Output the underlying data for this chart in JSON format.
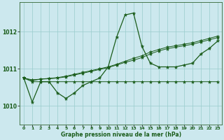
{
  "title": "Graphe pression niveau de la mer (hPa)",
  "bg_color": "#cce8ee",
  "grid_color": "#99cccc",
  "line_color": "#1a5c1a",
  "x_ticks": [
    0,
    1,
    2,
    3,
    4,
    5,
    6,
    7,
    8,
    9,
    10,
    11,
    12,
    13,
    14,
    15,
    16,
    17,
    18,
    19,
    20,
    21,
    22,
    23
  ],
  "y_ticks": [
    1010,
    1011,
    1012
  ],
  "ylim": [
    1009.5,
    1012.8
  ],
  "xlim": [
    -0.5,
    23.5
  ],
  "series1": [
    1010.75,
    1010.1,
    1010.65,
    1010.65,
    1010.35,
    1010.2,
    1010.35,
    1010.55,
    1010.65,
    1010.75,
    1011.05,
    1011.85,
    1012.45,
    1012.5,
    1011.6,
    1011.15,
    1011.05,
    1011.05,
    1011.05,
    1011.1,
    1011.15,
    1011.4,
    1011.55,
    1011.75
  ],
  "series2": [
    1010.75,
    1010.65,
    1010.65,
    1010.65,
    1010.65,
    1010.65,
    1010.65,
    1010.65,
    1010.65,
    1010.65,
    1010.65,
    1010.65,
    1010.65,
    1010.65,
    1010.65,
    1010.65,
    1010.65,
    1010.65,
    1010.65,
    1010.65,
    1010.65,
    1010.65,
    1010.65,
    1010.65
  ],
  "series3": [
    1010.75,
    1010.68,
    1010.72,
    1010.74,
    1010.76,
    1010.8,
    1010.85,
    1010.9,
    1010.95,
    1011.0,
    1011.05,
    1011.12,
    1011.2,
    1011.28,
    1011.35,
    1011.45,
    1011.52,
    1011.58,
    1011.62,
    1011.66,
    1011.7,
    1011.76,
    1011.82,
    1011.88
  ],
  "series4": [
    1010.75,
    1010.7,
    1010.72,
    1010.73,
    1010.75,
    1010.78,
    1010.83,
    1010.88,
    1010.93,
    1010.98,
    1011.03,
    1011.1,
    1011.17,
    1011.23,
    1011.3,
    1011.4,
    1011.48,
    1011.54,
    1011.58,
    1011.62,
    1011.66,
    1011.72,
    1011.78,
    1011.84
  ]
}
